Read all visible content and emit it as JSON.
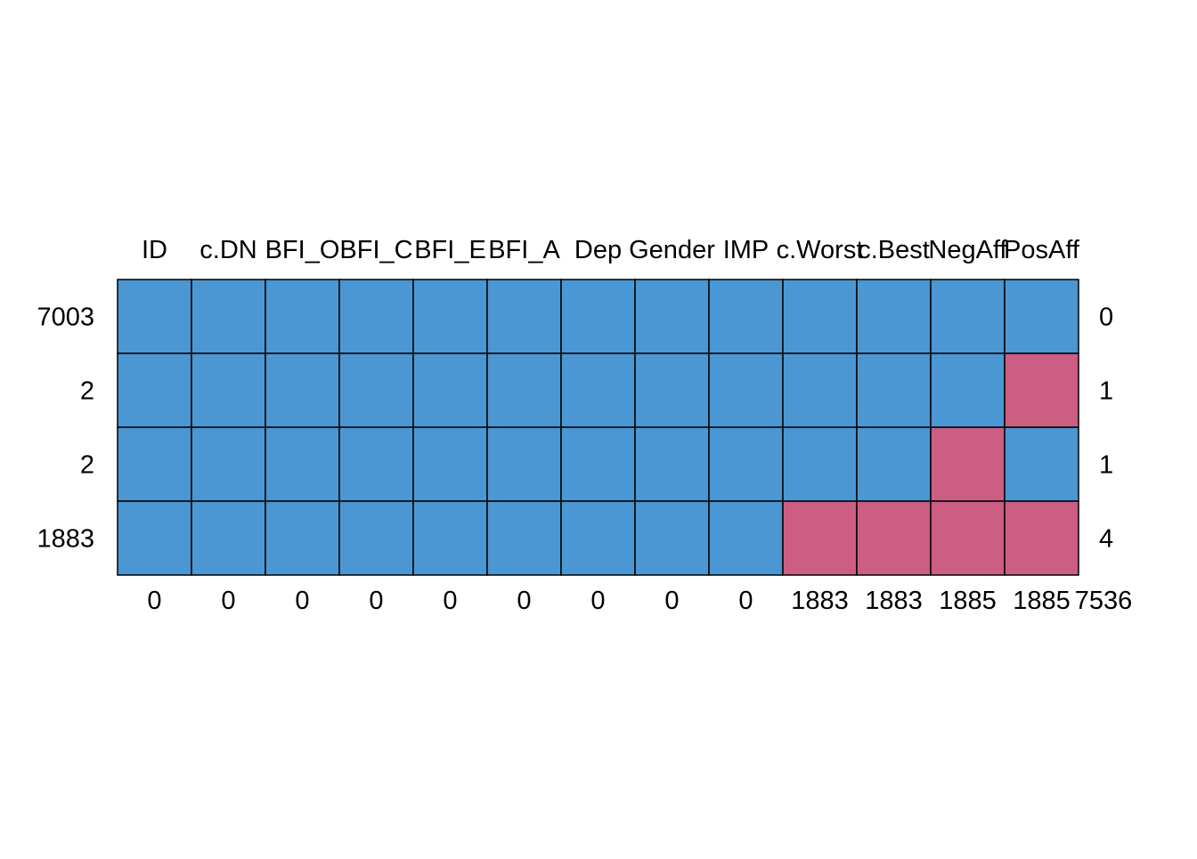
{
  "chart_data": {
    "type": "heatmap",
    "title": "",
    "columns": [
      "ID",
      "c.DN",
      "BFI_O",
      "BFI_C",
      "BFI_E",
      "BFI_A",
      "Dep",
      "Gender",
      "IMP",
      "c.Worst",
      "c.Best",
      "NegAff",
      "PosAff"
    ],
    "row_counts": [
      "7003",
      "2",
      "2",
      "1883"
    ],
    "row_missing_counts": [
      "0",
      "1",
      "1",
      "4"
    ],
    "column_missing_counts": [
      "0",
      "0",
      "0",
      "0",
      "0",
      "0",
      "0",
      "0",
      "0",
      "1883",
      "1883",
      "1885",
      "1885"
    ],
    "total_missing": "7536",
    "matrix": [
      [
        1,
        1,
        1,
        1,
        1,
        1,
        1,
        1,
        1,
        1,
        1,
        1,
        1
      ],
      [
        1,
        1,
        1,
        1,
        1,
        1,
        1,
        1,
        1,
        1,
        1,
        1,
        0
      ],
      [
        1,
        1,
        1,
        1,
        1,
        1,
        1,
        1,
        1,
        1,
        1,
        0,
        1
      ],
      [
        1,
        1,
        1,
        1,
        1,
        1,
        1,
        1,
        1,
        0,
        0,
        0,
        0
      ]
    ],
    "legend_meaning": {
      "1": "observed",
      "0": "missing"
    },
    "colors": {
      "observed": "#4b97d3",
      "missing": "#cc5e83",
      "border": "#000000"
    }
  }
}
